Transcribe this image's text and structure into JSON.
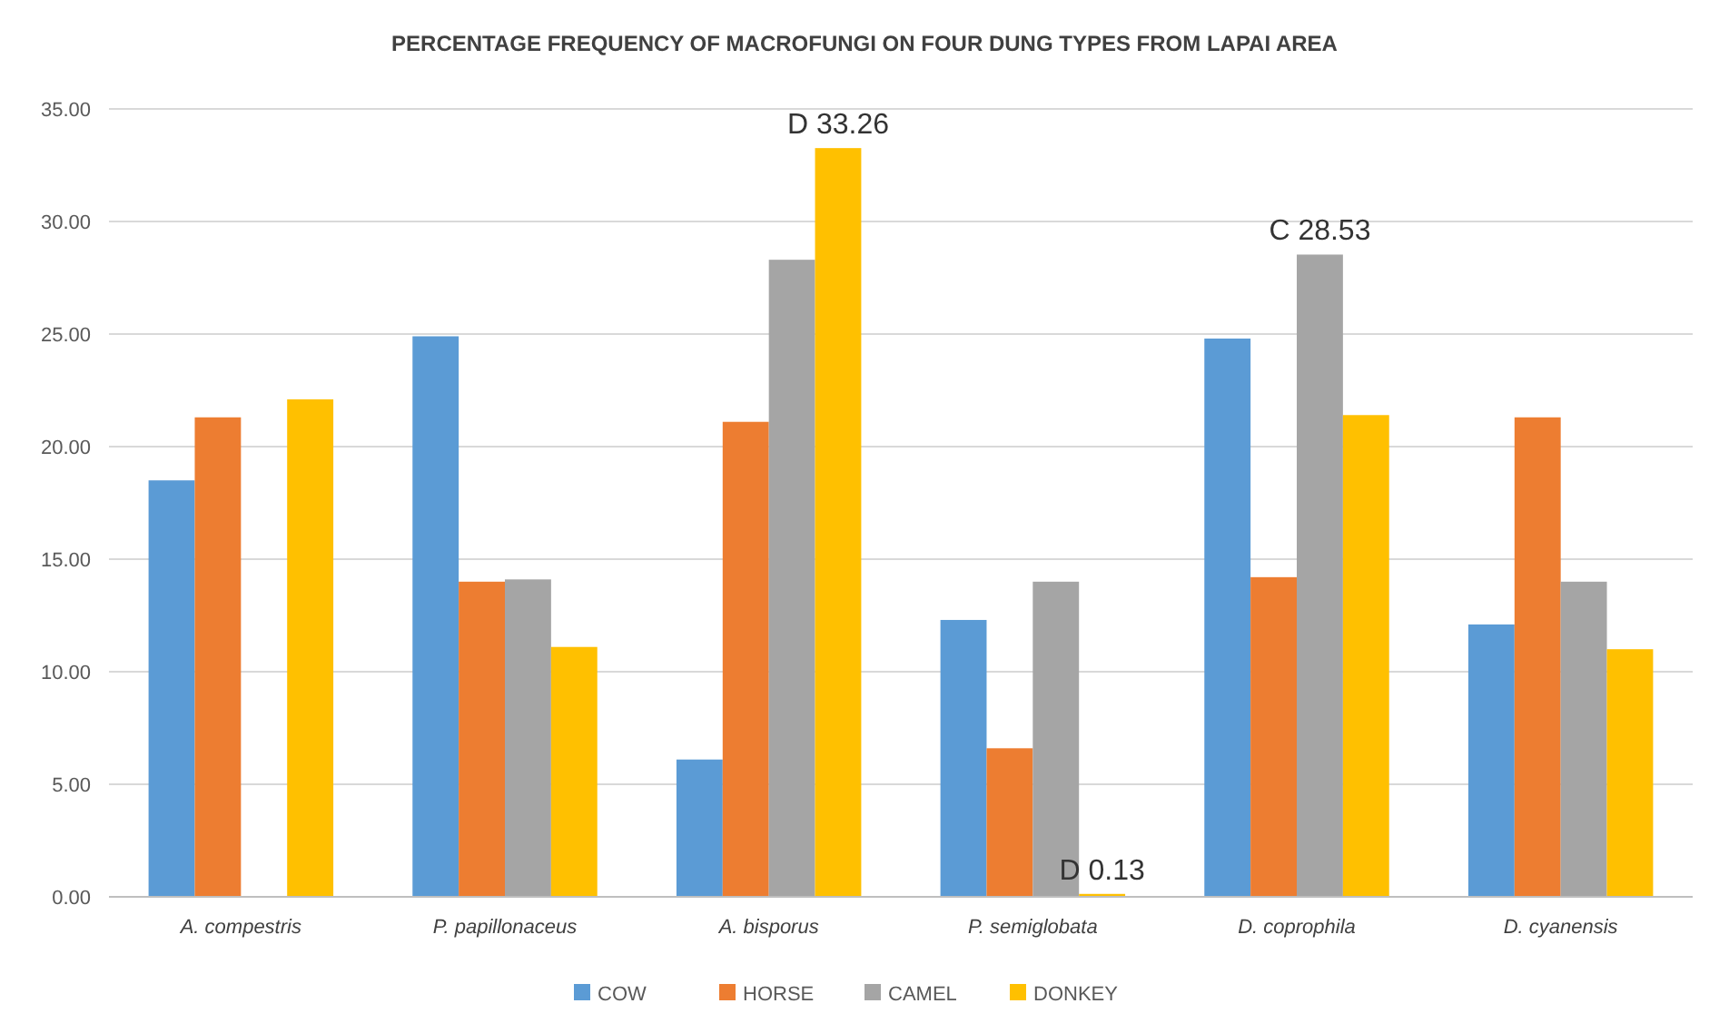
{
  "chart_data": {
    "type": "bar",
    "title": "PERCENTAGE FREQUENCY OF MACROFUNGI ON FOUR DUNG TYPES FROM LAPAI AREA",
    "categories": [
      "A. compestris",
      "P. papillonaceus",
      "A. bisporus",
      "P. semiglobata",
      "D. coprophila",
      "D. cyanensis"
    ],
    "series": [
      {
        "name": "COW",
        "color": "#5b9bd5",
        "values": [
          18.5,
          24.9,
          6.1,
          12.3,
          24.8,
          12.1
        ]
      },
      {
        "name": "HORSE",
        "color": "#ed7d31",
        "values": [
          21.3,
          14.0,
          21.1,
          6.6,
          14.2,
          21.3
        ]
      },
      {
        "name": "CAMEL",
        "color": "#a5a5a5",
        "values": [
          0,
          14.1,
          28.3,
          14.0,
          28.53,
          14.0
        ],
        "value_labels": [
          null,
          null,
          null,
          null,
          "C 28.53",
          null
        ]
      },
      {
        "name": "DONKEY",
        "color": "#ffc000",
        "values": [
          22.1,
          11.1,
          33.26,
          0.13,
          21.4,
          11.0
        ],
        "value_labels": [
          null,
          null,
          "D 33.26",
          "D 0.13",
          null,
          null
        ]
      }
    ],
    "ylim": [
      0,
      35
    ],
    "yticks": [
      {
        "value": 0,
        "label": "0.00"
      },
      {
        "value": 5,
        "label": "5.00"
      },
      {
        "value": 10,
        "label": "10.00"
      },
      {
        "value": 15,
        "label": "15.00"
      },
      {
        "value": 20,
        "label": "20.00"
      },
      {
        "value": 25,
        "label": "25.00"
      },
      {
        "value": 30,
        "label": "30.00"
      },
      {
        "value": 35,
        "label": "35.00"
      }
    ],
    "grid": "y",
    "legend": "bottom"
  }
}
